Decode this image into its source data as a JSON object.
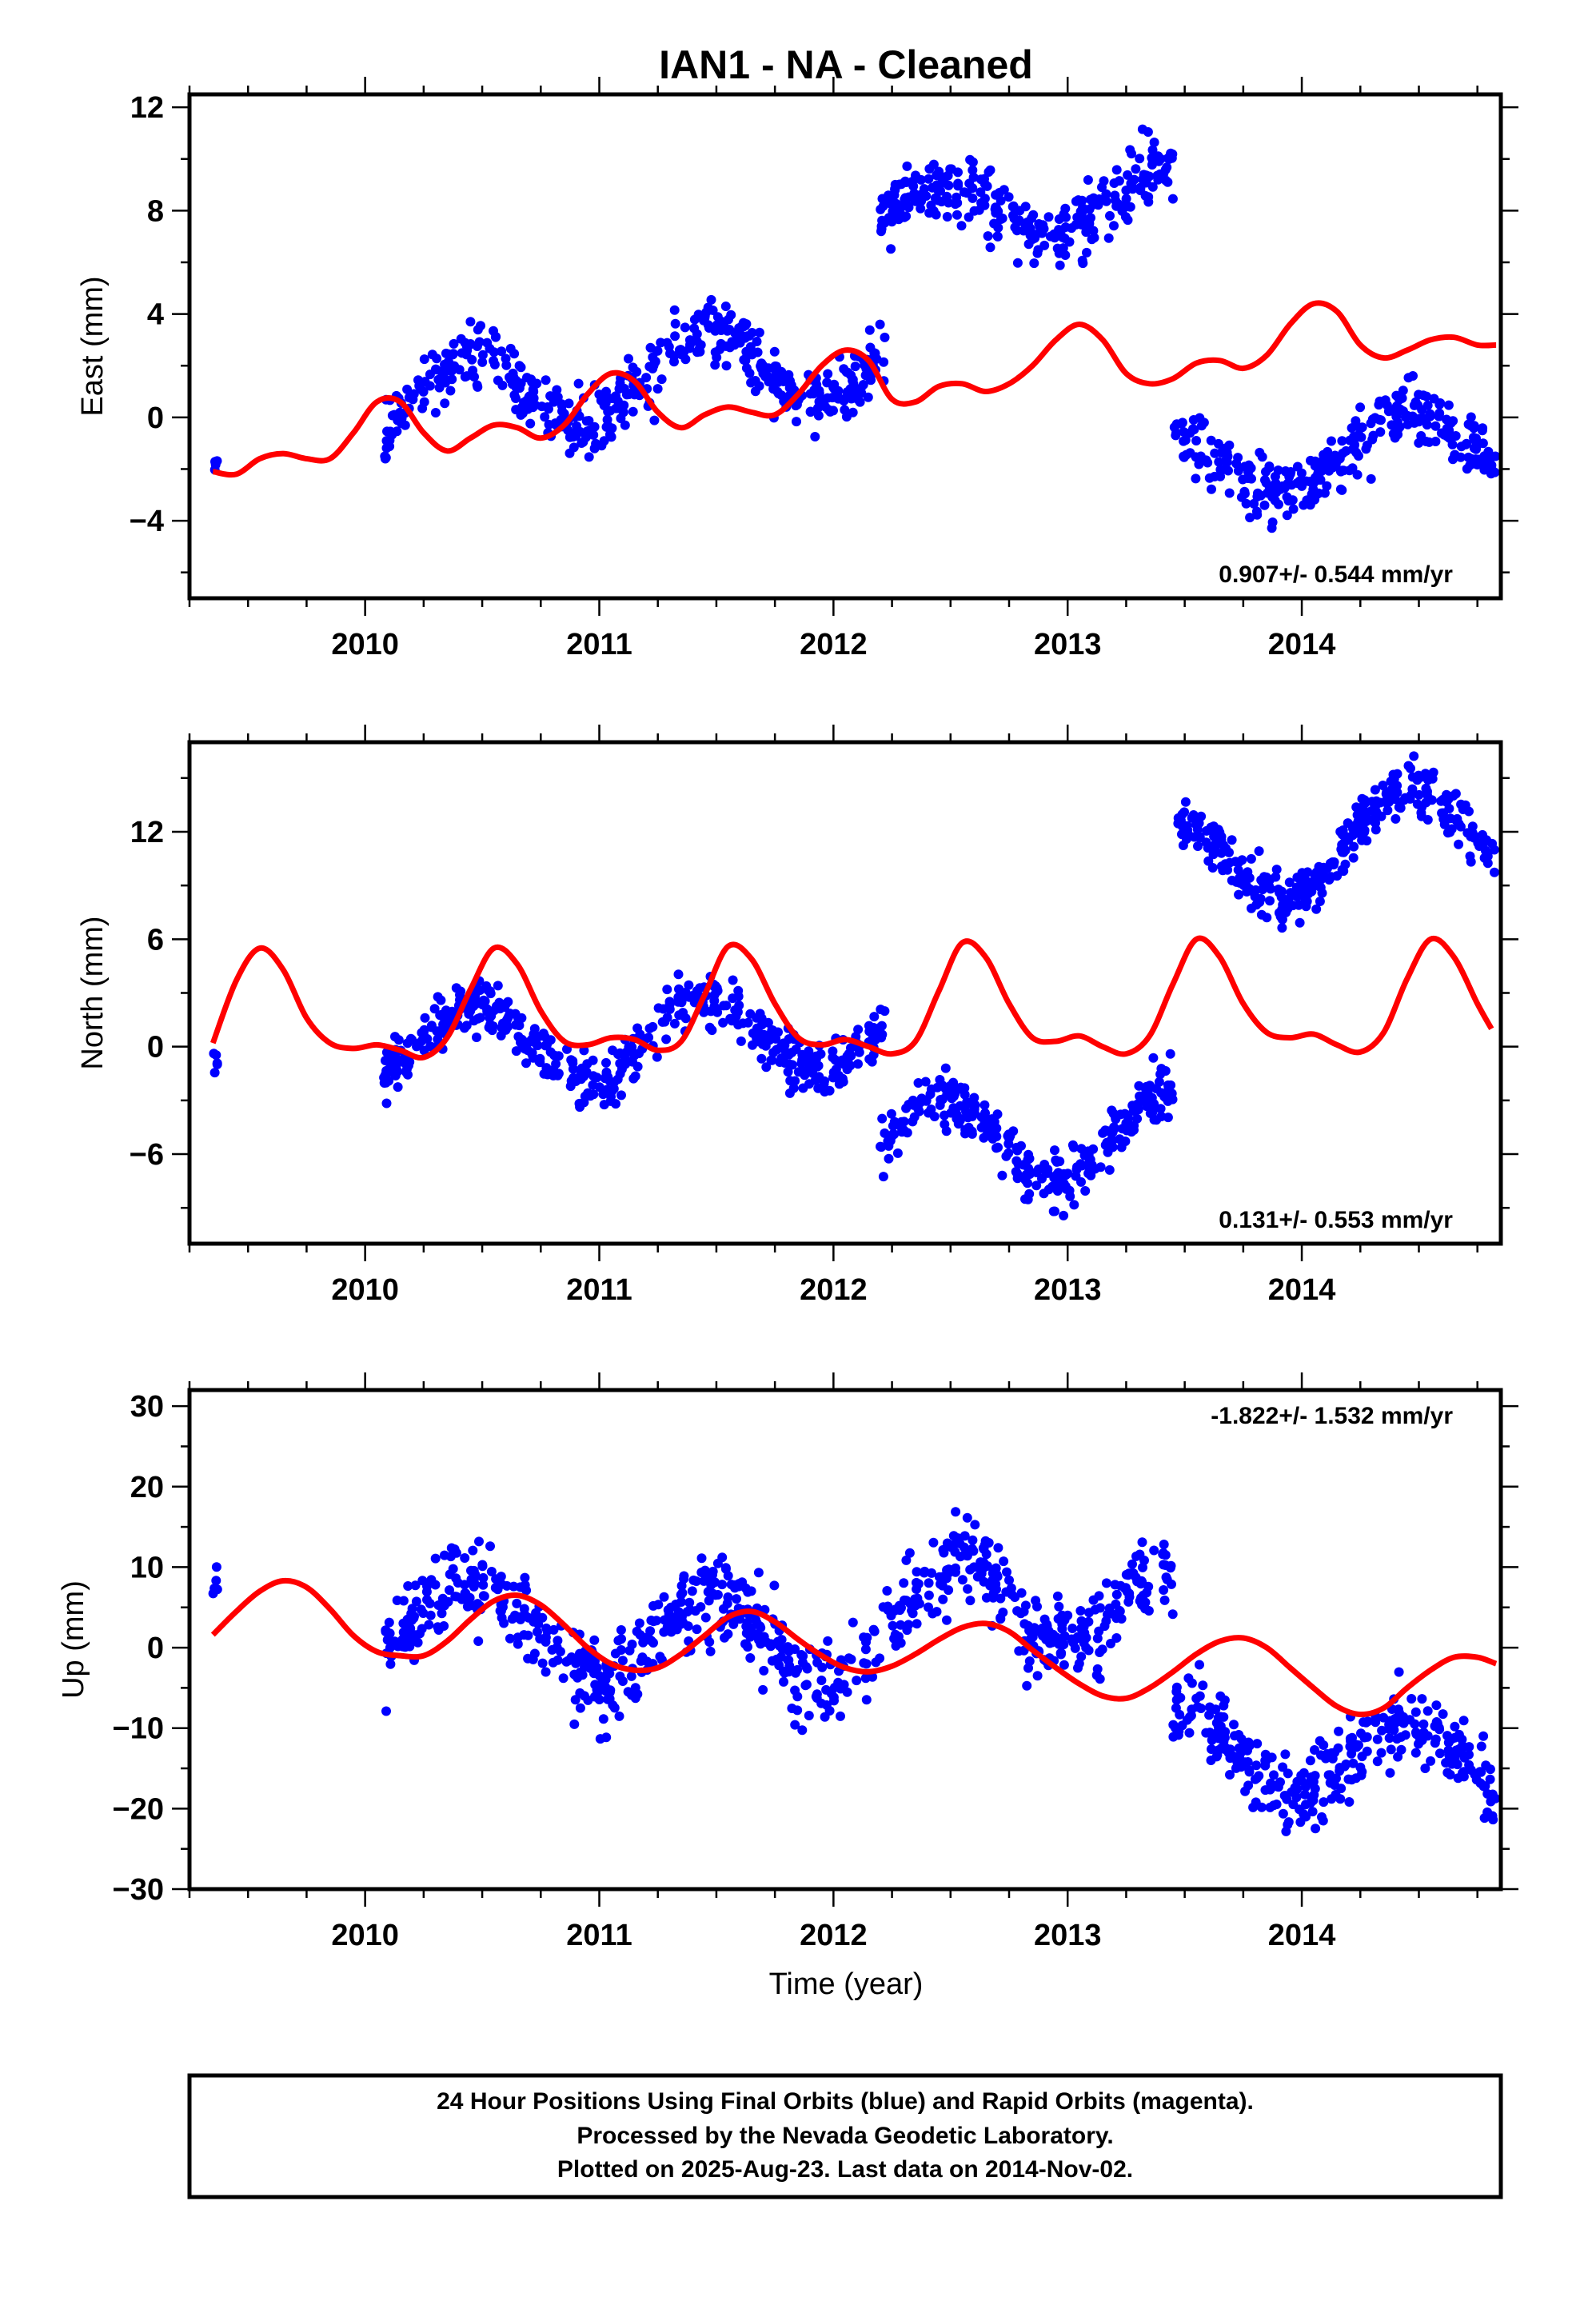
{
  "title": "IAN1  - NA - Cleaned",
  "footer": {
    "line1": "24 Hour Positions Using Final Orbits (blue) and Rapid Orbits (magenta).",
    "line2": "Processed by the Nevada Geodetic Laboratory.",
    "line3": "Plotted on 2025-Aug-23. Last data on 2014-Nov-02."
  },
  "colors": {
    "data": "#0000ff",
    "model": "#ff0000",
    "frame": "#000000"
  },
  "chart_data": [
    {
      "type": "scatter",
      "ylabel": "East (mm)",
      "xlim": [
        2009.25,
        2014.85
      ],
      "ylim": [
        -7,
        12.5
      ],
      "yticks": [
        -4,
        0,
        4,
        8,
        12
      ],
      "yticklabels": [
        "−4",
        "0",
        "4",
        "8",
        "12"
      ],
      "xticks": [
        2010,
        2011,
        2012,
        2013,
        2014
      ],
      "rate_text": "0.907+/- 0.544 mm/yr",
      "rate_position": "bottom-right",
      "segments": [
        {
          "start": 2009.35,
          "end": 2009.37,
          "offset": -2.1,
          "amp": 0.3,
          "trend": 0,
          "spread": 0.3
        },
        {
          "start": 2010.08,
          "end": 2012.22,
          "offset": 0.5,
          "amp": 1.5,
          "trend": 0.9,
          "spread": 1.1
        },
        {
          "start": 2012.2,
          "end": 2013.45,
          "offset": 7.6,
          "amp": 1.2,
          "trend": 0.9,
          "spread": 1.1
        },
        {
          "start": 2013.45,
          "end": 2014.83,
          "offset": -2.0,
          "amp": 1.3,
          "trend": 0.9,
          "spread": 1.0
        }
      ],
      "model": {
        "x": [
          2009.35,
          2009.45,
          2009.55,
          2009.65,
          2009.75,
          2009.85,
          2009.95,
          2010.05,
          2010.15,
          2010.25,
          2010.35,
          2010.45,
          2010.55,
          2010.65,
          2010.75,
          2010.85,
          2010.95,
          2011.05,
          2011.15,
          2011.25,
          2011.35,
          2011.45,
          2011.55,
          2011.65,
          2011.75,
          2011.85,
          2011.95,
          2012.05,
          2012.15,
          2012.25,
          2012.35,
          2012.45,
          2012.55,
          2012.65,
          2012.75,
          2012.85,
          2012.95,
          2013.05,
          2013.15,
          2013.25,
          2013.35,
          2013.45,
          2013.55,
          2013.65,
          2013.75,
          2013.85,
          2013.95,
          2014.05,
          2014.15,
          2014.25,
          2014.35,
          2014.45,
          2014.55,
          2014.65,
          2014.75,
          2014.83
        ],
        "y": [
          -2.1,
          -2.2,
          -1.6,
          -1.4,
          -1.6,
          -1.6,
          -0.6,
          0.6,
          0.6,
          -0.6,
          -1.3,
          -0.8,
          -0.3,
          -0.4,
          -0.8,
          -0.3,
          0.9,
          1.7,
          1.4,
          0.2,
          -0.4,
          0.1,
          0.4,
          0.2,
          0.1,
          0.9,
          2.0,
          2.6,
          2.2,
          0.7,
          0.6,
          1.2,
          1.3,
          1.0,
          1.3,
          2.0,
          3.0,
          3.6,
          3.0,
          1.7,
          1.3,
          1.5,
          2.1,
          2.2,
          1.9,
          2.4,
          3.6,
          4.4,
          4.1,
          2.8,
          2.3,
          2.6,
          3.0,
          3.1,
          2.8,
          2.8
        ]
      }
    },
    {
      "type": "scatter",
      "ylabel": "North (mm)",
      "xlim": [
        2009.25,
        2014.85
      ],
      "ylim": [
        -11,
        17
      ],
      "yticks": [
        -6,
        0,
        6,
        12
      ],
      "yticklabels": [
        "−6",
        "0",
        "6",
        "12"
      ],
      "xticks": [
        2010,
        2011,
        2012,
        2013,
        2014
      ],
      "rate_text": "0.131+/- 0.553 mm/yr",
      "rate_position": "bottom-right",
      "segments": [
        {
          "start": 2009.35,
          "end": 2009.37,
          "offset": -1.3,
          "amp": 0.4,
          "trend": 0,
          "spread": 0.4
        },
        {
          "start": 2010.08,
          "end": 2012.22,
          "offset": -0.2,
          "amp": 2.2,
          "trend": 0.6,
          "spread": 1.3
        },
        {
          "start": 2012.2,
          "end": 2013.45,
          "offset": -5.5,
          "amp": 2.5,
          "trend": 0.6,
          "spread": 1.3
        },
        {
          "start": 2013.45,
          "end": 2014.83,
          "offset": 10.0,
          "amp": 2.6,
          "trend": 1.8,
          "spread": 1.2
        }
      ],
      "model": {
        "x": [
          2009.35,
          2009.45,
          2009.55,
          2009.65,
          2009.75,
          2009.85,
          2009.95,
          2010.05,
          2010.15,
          2010.25,
          2010.35,
          2010.45,
          2010.55,
          2010.65,
          2010.75,
          2010.85,
          2010.95,
          2011.05,
          2011.15,
          2011.25,
          2011.35,
          2011.45,
          2011.55,
          2011.65,
          2011.75,
          2011.85,
          2011.95,
          2012.05,
          2012.15,
          2012.25,
          2012.35,
          2012.45,
          2012.55,
          2012.65,
          2012.75,
          2012.85,
          2012.95,
          2013.05,
          2013.15,
          2013.25,
          2013.35,
          2013.45,
          2013.55,
          2013.65,
          2013.75,
          2013.85,
          2013.95,
          2014.05,
          2014.15,
          2014.25,
          2014.35,
          2014.45,
          2014.55,
          2014.65,
          2014.75,
          2014.81
        ],
        "y": [
          0.2,
          3.7,
          5.5,
          4.3,
          1.6,
          0.2,
          -0.1,
          0.1,
          -0.2,
          -0.6,
          0.5,
          3.2,
          5.5,
          4.6,
          2.0,
          0.3,
          0.1,
          0.5,
          0.4,
          -0.2,
          0.3,
          2.9,
          5.6,
          4.9,
          2.4,
          0.5,
          0.1,
          0.4,
          0.0,
          -0.4,
          0.3,
          3.1,
          5.8,
          5.0,
          2.4,
          0.5,
          0.3,
          0.6,
          0.0,
          -0.4,
          0.6,
          3.5,
          6.0,
          5.0,
          2.4,
          0.8,
          0.5,
          0.7,
          0.1,
          -0.3,
          0.8,
          3.8,
          6.0,
          5.0,
          2.4,
          1.0
        ]
      }
    },
    {
      "type": "scatter",
      "ylabel": "Up (mm)",
      "xlabel": "Time (year)",
      "xlim": [
        2009.25,
        2014.85
      ],
      "ylim": [
        -30,
        32
      ],
      "yticks": [
        -30,
        -20,
        -10,
        0,
        10,
        20,
        30
      ],
      "yticklabels": [
        "−30",
        "−20",
        "−10",
        "0",
        "10",
        "20",
        "30"
      ],
      "xticks": [
        2010,
        2011,
        2012,
        2013,
        2014
      ],
      "rate_text": "-1.822+/- 1.532 mm/yr",
      "rate_position": "top-right",
      "segments": [
        {
          "start": 2009.35,
          "end": 2009.37,
          "offset": 6.0,
          "amp": 2.0,
          "trend": 0,
          "spread": 3.0
        },
        {
          "start": 2010.08,
          "end": 2011.0,
          "offset": 3.0,
          "amp": 5.0,
          "trend": 0,
          "spread": 4.5
        },
        {
          "start": 2011.0,
          "end": 2012.5,
          "offset": 0.0,
          "amp": 6.0,
          "trend": 1.5,
          "spread": 4.5
        },
        {
          "start": 2012.5,
          "end": 2013.45,
          "offset": 8.0,
          "amp": 6.0,
          "trend": -4.0,
          "spread": 4.5
        },
        {
          "start": 2013.45,
          "end": 2014.83,
          "offset": -12.0,
          "amp": 5.0,
          "trend": -2.0,
          "spread": 4.0
        }
      ],
      "model": {
        "x": [
          2009.35,
          2009.45,
          2009.55,
          2009.65,
          2009.75,
          2009.85,
          2009.95,
          2010.05,
          2010.15,
          2010.25,
          2010.35,
          2010.45,
          2010.55,
          2010.65,
          2010.75,
          2010.85,
          2010.95,
          2011.05,
          2011.15,
          2011.25,
          2011.35,
          2011.45,
          2011.55,
          2011.65,
          2011.75,
          2011.85,
          2011.95,
          2012.05,
          2012.15,
          2012.25,
          2012.35,
          2012.45,
          2012.55,
          2012.65,
          2012.75,
          2012.85,
          2012.95,
          2013.05,
          2013.15,
          2013.25,
          2013.35,
          2013.45,
          2013.55,
          2013.65,
          2013.75,
          2013.85,
          2013.95,
          2014.05,
          2014.15,
          2014.25,
          2014.35,
          2014.45,
          2014.55,
          2014.65,
          2014.75,
          2014.83
        ],
        "y": [
          1.6,
          4.5,
          7.0,
          8.3,
          7.5,
          4.8,
          1.5,
          -0.5,
          -1.0,
          -1.0,
          0.8,
          3.5,
          5.8,
          6.5,
          5.3,
          2.8,
          0.0,
          -2.0,
          -2.8,
          -2.5,
          -0.8,
          1.5,
          3.8,
          4.5,
          3.2,
          1.0,
          -1.0,
          -2.5,
          -3.0,
          -2.3,
          -0.8,
          1.0,
          2.5,
          3.0,
          2.0,
          -0.3,
          -2.5,
          -4.5,
          -6.0,
          -6.3,
          -5.0,
          -3.0,
          -0.8,
          0.8,
          1.2,
          0.0,
          -2.5,
          -5.0,
          -7.3,
          -8.3,
          -7.5,
          -5.0,
          -2.8,
          -1.2,
          -1.2,
          -2.0
        ]
      }
    }
  ]
}
